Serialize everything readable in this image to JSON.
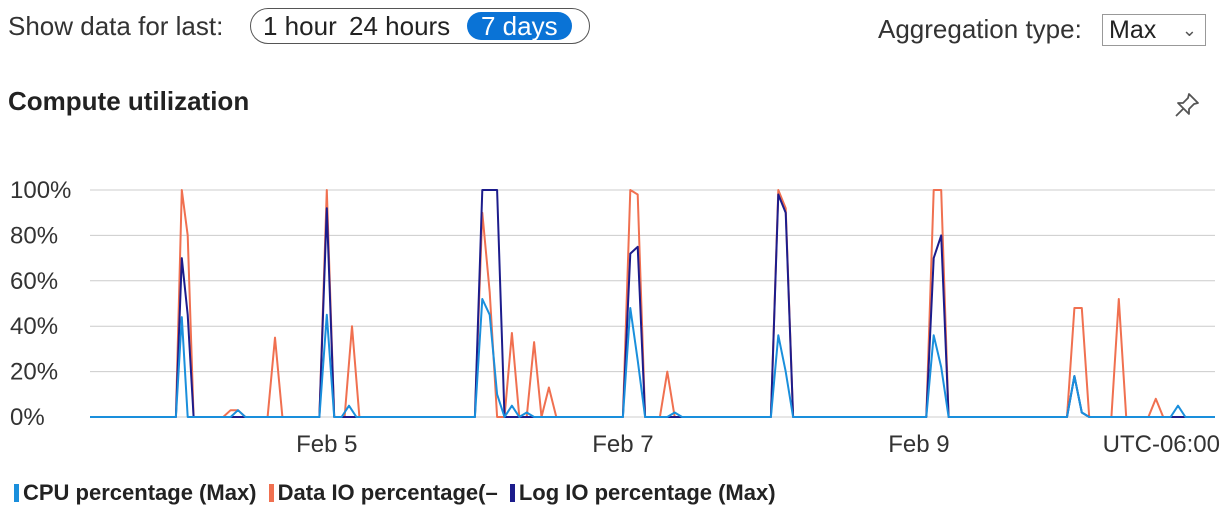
{
  "controls": {
    "show_label": "Show data for last:",
    "range_options": [
      "1 hour",
      "24 hours",
      "7 days"
    ],
    "selected_range": "7 days",
    "aggregation_label": "Aggregation type:",
    "aggregation_value": "Max"
  },
  "panel": {
    "title": "Compute utilization",
    "pin_icon": "pin-icon"
  },
  "colors": {
    "cpu": "#1a8fdc",
    "data_io": "#f07050",
    "log_io": "#1c1c8c",
    "grid": "#cccccc",
    "selected_range_bg": "#0a73d6"
  },
  "chart_data": {
    "type": "line",
    "y_ticks": [
      "100%",
      "80%",
      "60%",
      "40%",
      "20%",
      "0%"
    ],
    "ylim": [
      0,
      100
    ],
    "x_tick_labels": [
      {
        "label": "Feb 5",
        "x": 5.0
      },
      {
        "label": "Feb 7",
        "x": 7.0
      },
      {
        "label": "Feb 9",
        "x": 9.0
      }
    ],
    "x_range": [
      3.4,
      11.0
    ],
    "timezone_label": "UTC-06:00",
    "grid": true,
    "legend_position": "bottom",
    "series": [
      {
        "name": "CPU percentage (Max)",
        "color_key": "cpu",
        "points": [
          [
            3.4,
            0
          ],
          [
            3.98,
            0
          ],
          [
            4.02,
            44
          ],
          [
            4.06,
            0
          ],
          [
            4.35,
            0
          ],
          [
            4.4,
            3
          ],
          [
            4.45,
            0
          ],
          [
            4.95,
            0
          ],
          [
            5.0,
            45
          ],
          [
            5.05,
            0
          ],
          [
            5.1,
            0
          ],
          [
            5.15,
            5
          ],
          [
            5.2,
            0
          ],
          [
            6.0,
            0
          ],
          [
            6.05,
            52
          ],
          [
            6.1,
            45
          ],
          [
            6.15,
            10
          ],
          [
            6.2,
            0
          ],
          [
            6.25,
            5
          ],
          [
            6.3,
            0
          ],
          [
            6.35,
            2
          ],
          [
            6.4,
            0
          ],
          [
            7.0,
            0
          ],
          [
            7.05,
            48
          ],
          [
            7.1,
            25
          ],
          [
            7.15,
            0
          ],
          [
            7.3,
            0
          ],
          [
            7.35,
            2
          ],
          [
            7.4,
            0
          ],
          [
            8.0,
            0
          ],
          [
            8.05,
            36
          ],
          [
            8.1,
            20
          ],
          [
            8.15,
            0
          ],
          [
            9.05,
            0
          ],
          [
            9.1,
            36
          ],
          [
            9.15,
            22
          ],
          [
            9.2,
            0
          ],
          [
            10.0,
            0
          ],
          [
            10.05,
            18
          ],
          [
            10.1,
            2
          ],
          [
            10.15,
            0
          ],
          [
            10.7,
            0
          ],
          [
            10.75,
            5
          ],
          [
            10.8,
            0
          ],
          [
            11.0,
            0
          ]
        ]
      },
      {
        "name": "Data IO percentage(–",
        "color_key": "data_io",
        "points": [
          [
            3.4,
            0
          ],
          [
            3.98,
            0
          ],
          [
            4.02,
            100
          ],
          [
            4.06,
            80
          ],
          [
            4.1,
            0
          ],
          [
            4.3,
            0
          ],
          [
            4.35,
            3
          ],
          [
            4.4,
            3
          ],
          [
            4.45,
            0
          ],
          [
            4.6,
            0
          ],
          [
            4.65,
            35
          ],
          [
            4.7,
            0
          ],
          [
            4.95,
            0
          ],
          [
            5.0,
            100
          ],
          [
            5.05,
            0
          ],
          [
            5.12,
            0
          ],
          [
            5.17,
            40
          ],
          [
            5.22,
            0
          ],
          [
            6.0,
            0
          ],
          [
            6.05,
            90
          ],
          [
            6.1,
            55
          ],
          [
            6.15,
            0
          ],
          [
            6.2,
            0
          ],
          [
            6.25,
            37
          ],
          [
            6.3,
            0
          ],
          [
            6.35,
            0
          ],
          [
            6.4,
            33
          ],
          [
            6.45,
            0
          ],
          [
            6.5,
            13
          ],
          [
            6.55,
            0
          ],
          [
            7.0,
            0
          ],
          [
            7.05,
            100
          ],
          [
            7.1,
            98
          ],
          [
            7.15,
            0
          ],
          [
            7.25,
            0
          ],
          [
            7.3,
            20
          ],
          [
            7.35,
            0
          ],
          [
            8.0,
            0
          ],
          [
            8.05,
            100
          ],
          [
            8.1,
            92
          ],
          [
            8.15,
            0
          ],
          [
            9.05,
            0
          ],
          [
            9.1,
            100
          ],
          [
            9.15,
            100
          ],
          [
            9.2,
            0
          ],
          [
            10.0,
            0
          ],
          [
            10.05,
            48
          ],
          [
            10.1,
            48
          ],
          [
            10.15,
            0
          ],
          [
            10.3,
            0
          ],
          [
            10.35,
            52
          ],
          [
            10.4,
            0
          ],
          [
            10.55,
            0
          ],
          [
            10.6,
            8
          ],
          [
            10.65,
            0
          ],
          [
            11.0,
            0
          ]
        ]
      },
      {
        "name": "Log IO percentage (Max)",
        "color_key": "log_io",
        "points": [
          [
            3.4,
            0
          ],
          [
            3.98,
            0
          ],
          [
            4.02,
            70
          ],
          [
            4.06,
            45
          ],
          [
            4.1,
            0
          ],
          [
            4.95,
            0
          ],
          [
            5.0,
            92
          ],
          [
            5.05,
            0
          ],
          [
            6.0,
            0
          ],
          [
            6.05,
            100
          ],
          [
            6.1,
            100
          ],
          [
            6.15,
            100
          ],
          [
            6.2,
            0
          ],
          [
            7.0,
            0
          ],
          [
            7.05,
            72
          ],
          [
            7.1,
            75
          ],
          [
            7.15,
            0
          ],
          [
            8.0,
            0
          ],
          [
            8.05,
            98
          ],
          [
            8.1,
            90
          ],
          [
            8.15,
            0
          ],
          [
            9.05,
            0
          ],
          [
            9.1,
            70
          ],
          [
            9.15,
            80
          ],
          [
            9.2,
            0
          ],
          [
            10.0,
            0
          ],
          [
            10.05,
            18
          ],
          [
            10.1,
            2
          ],
          [
            10.15,
            0
          ],
          [
            11.0,
            0
          ]
        ]
      }
    ]
  }
}
